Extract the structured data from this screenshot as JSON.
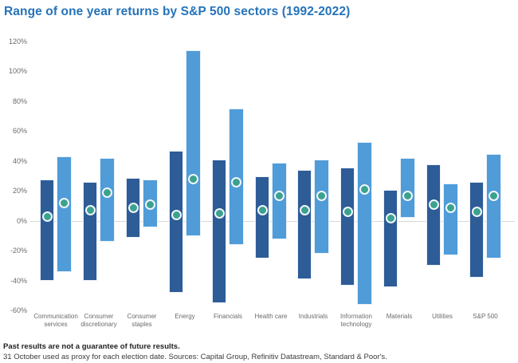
{
  "title": "Range of one year returns by S&P 500 sectors (1992-2022)",
  "chart_data": {
    "type": "bar",
    "variant": "floating range bars (min-max of one-year returns) with median dots, two bars per category",
    "title": "Range of one year returns by S&P 500 sectors (1992-2022)",
    "categories": [
      "Communication services",
      "Consumer discretionary",
      "Consumer staples",
      "Energy",
      "Financials",
      "Health care",
      "Industrials",
      "Information technology",
      "Materials",
      "Utilities",
      "S&P 500"
    ],
    "yticks": [
      120,
      100,
      80,
      60,
      40,
      20,
      0,
      -20,
      -40,
      -60
    ],
    "ytick_suffix": "%",
    "ylim": [
      -60,
      120
    ],
    "grid": "zero line only",
    "legend_position": "none",
    "series": [
      {
        "name": "dark-blue-range",
        "color": "#2d5c97",
        "ranges": [
          [
            -40,
            28
          ],
          [
            -40,
            26
          ],
          [
            -11,
            29
          ],
          [
            -48,
            47
          ],
          [
            -55,
            41
          ],
          [
            -25,
            30
          ],
          [
            -39,
            34
          ],
          [
            -43,
            36
          ],
          [
            -44,
            21
          ],
          [
            -30,
            38
          ],
          [
            -38,
            26
          ]
        ],
        "dots": [
          3,
          7,
          9,
          4,
          5,
          7,
          7,
          6,
          2,
          11,
          6
        ]
      },
      {
        "name": "light-blue-range",
        "color": "#4f9cd9",
        "ranges": [
          [
            -34,
            43
          ],
          [
            -14,
            42
          ],
          [
            -4,
            28
          ],
          [
            -10,
            114
          ],
          [
            -16,
            75
          ],
          [
            -12,
            39
          ],
          [
            -22,
            41
          ],
          [
            -56,
            53
          ],
          [
            2,
            42
          ],
          [
            -23,
            25
          ],
          [
            -25,
            45
          ]
        ],
        "dots": [
          12,
          19,
          11,
          28,
          26,
          17,
          17,
          21,
          17,
          9,
          17
        ]
      }
    ],
    "dot_color": "#3ba28f",
    "dot_ring_color": "#f2f6fa",
    "title_color": "#2573ba",
    "axis_label_color": "#6b6b6b",
    "zero_line_color": "#d9d9d9"
  },
  "footer": {
    "disclaimer": "Past results are not a guarantee of future results.",
    "source": "31 October used as proxy for each election date. Sources: Capital Group, Refinitiv Datastream, Standard & Poor's."
  }
}
